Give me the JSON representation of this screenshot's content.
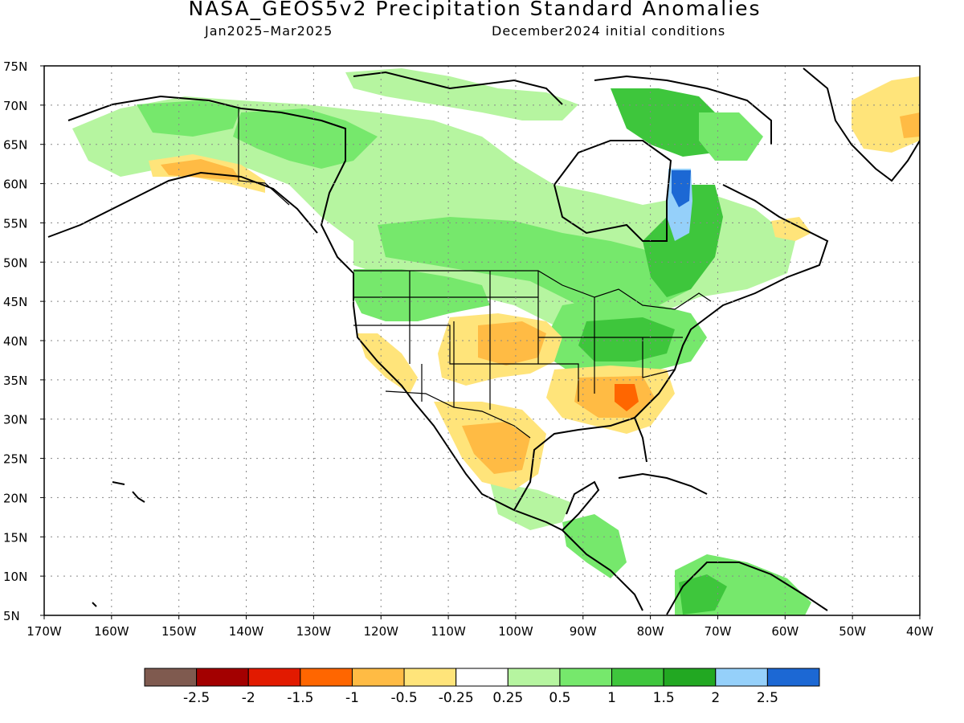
{
  "title": "NASA_GEOS5v2 Precipitation Standard Anomalies",
  "subtitle_left": "Jan2025–Mar2025",
  "subtitle_right": "December2024 initial conditions",
  "map": {
    "lon_range": [
      -170,
      -40
    ],
    "lat_range": [
      5,
      75
    ],
    "grid": "dotted",
    "lat_ticks": [
      "75N",
      "70N",
      "65N",
      "60N",
      "55N",
      "50N",
      "45N",
      "40N",
      "35N",
      "30N",
      "25N",
      "20N",
      "15N",
      "10N",
      "5N"
    ],
    "lon_ticks": [
      "170W",
      "160W",
      "150W",
      "140W",
      "130W",
      "120W",
      "110W",
      "100W",
      "90W",
      "80W",
      "70W",
      "60W",
      "50W",
      "40W"
    ]
  },
  "colorbar": {
    "colors": [
      "#7f5a4f",
      "#a30000",
      "#e21a00",
      "#ff6600",
      "#ffbb44",
      "#ffe47a",
      "#ffffff",
      "#b6f5a0",
      "#76e86c",
      "#3ec63c",
      "#22a822",
      "#95d0fa",
      "#1c68d4"
    ],
    "labels": [
      "-2.5",
      "-2",
      "-1.5",
      "-1",
      "-0.5",
      "-0.25",
      "0.25",
      "0.5",
      "1",
      "1.5",
      "2",
      "2.5"
    ]
  },
  "colors": {
    "dry": "#ffbb44",
    "slightly_dry": "#ffe47a",
    "wet": "#76e86c",
    "slightly_wet": "#b6f5a0",
    "very_wet": "#3ec63c",
    "extreme_wet": "#1c68d4",
    "wet_blue": "#95d0fa",
    "very_dry": "#ff6600"
  }
}
